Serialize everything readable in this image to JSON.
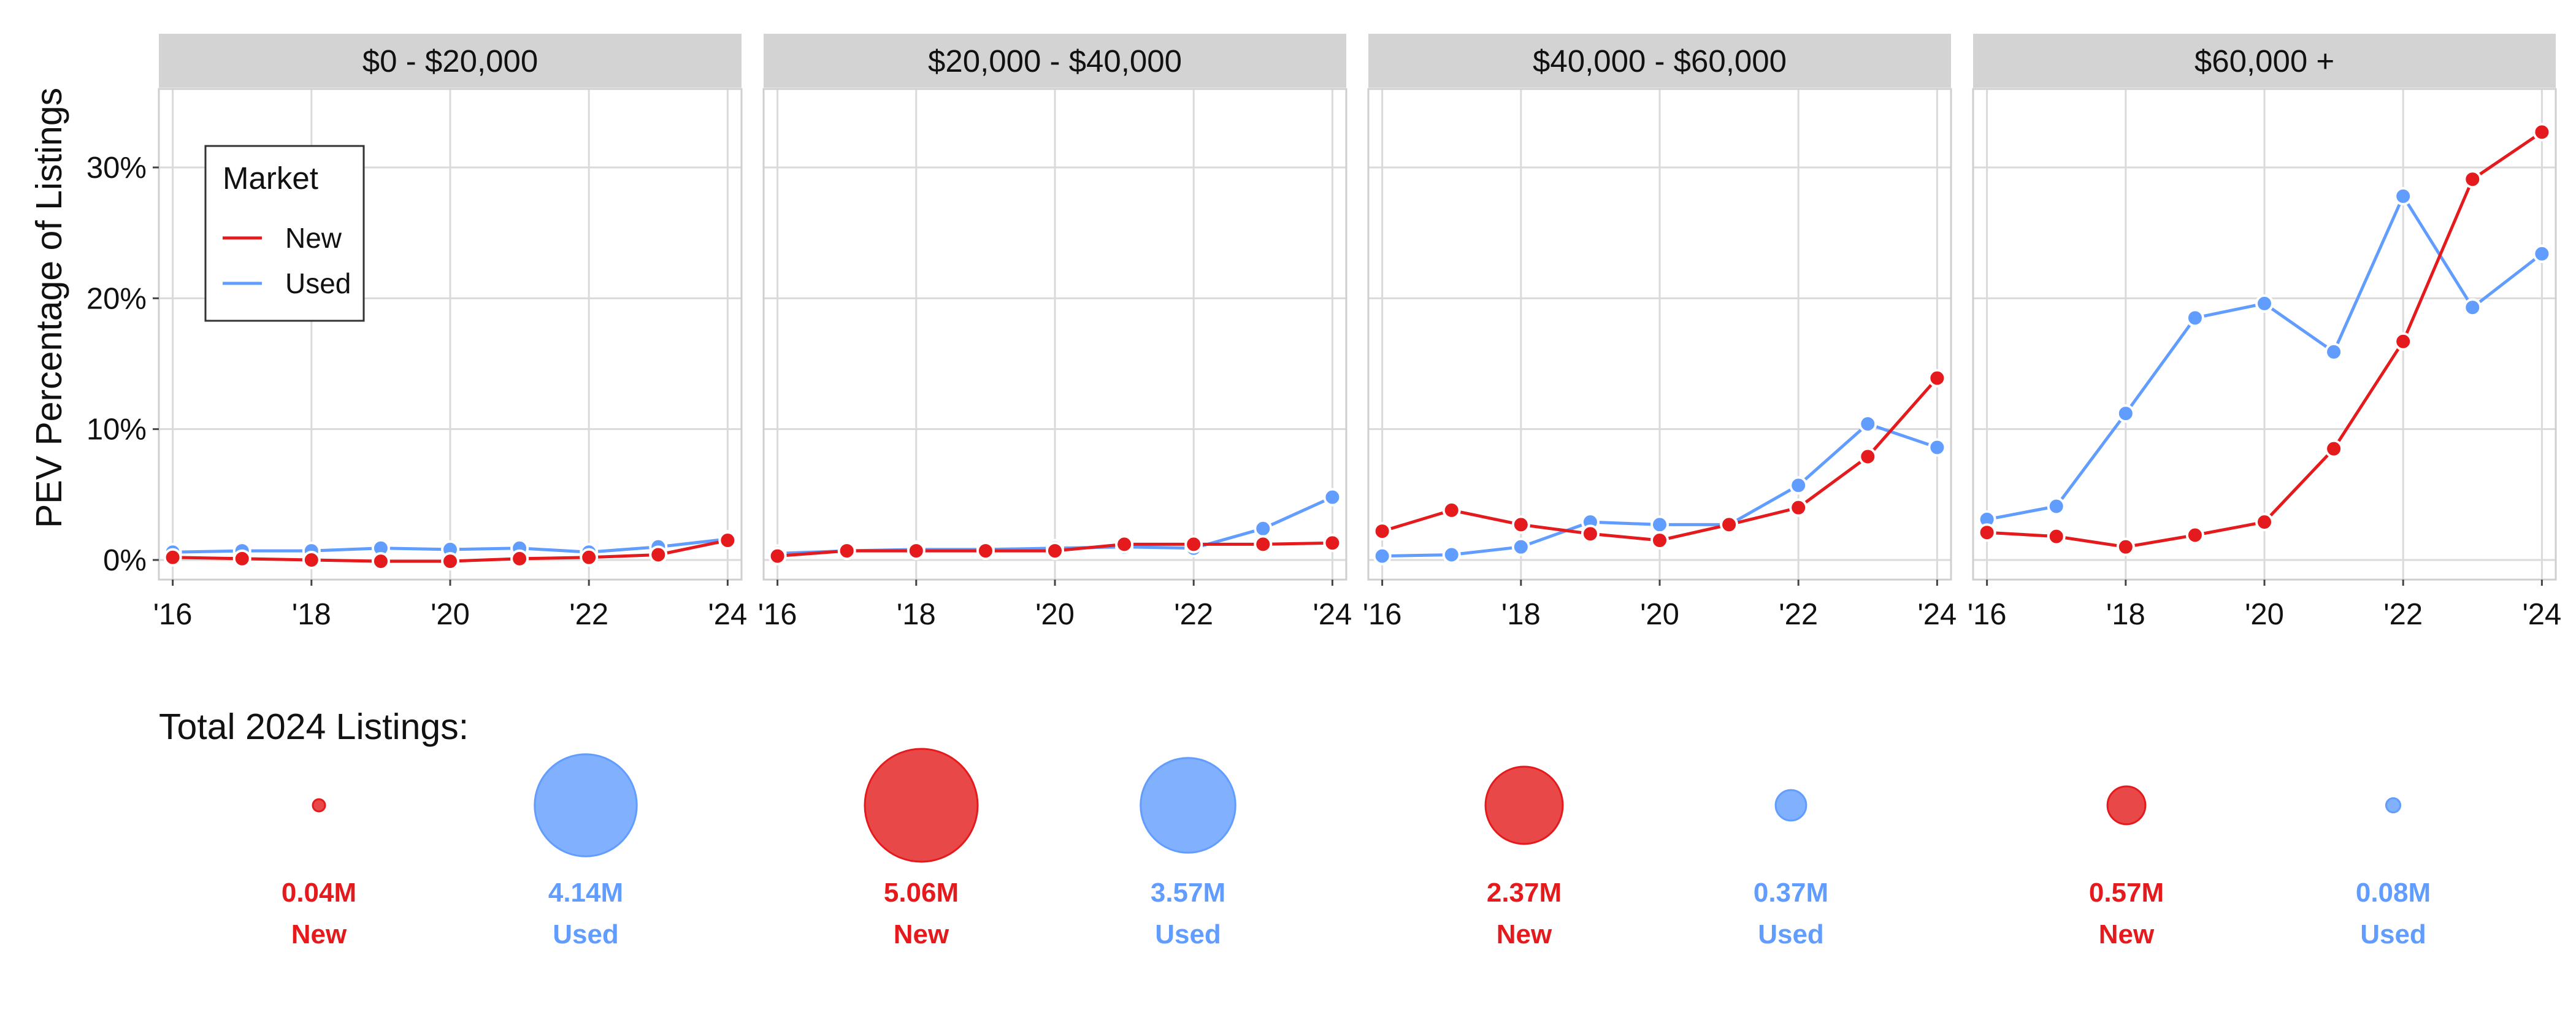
{
  "colors": {
    "New": "#E41A1C",
    "Used": "#619CFF"
  },
  "chart_data": {
    "type": "line",
    "ylabel": "PEV Percentage of Listings",
    "ylim": [
      -1.5,
      36
    ],
    "yticks": [
      0,
      10,
      20,
      30
    ],
    "ytick_labels": [
      "0%",
      "10%",
      "20%",
      "30%"
    ],
    "xlim": [
      2015.8,
      2024.2
    ],
    "xticks": [
      2016,
      2018,
      2020,
      2022,
      2024
    ],
    "xtick_labels": [
      "'16",
      "'18",
      "'20",
      "'22",
      "'24"
    ],
    "x": [
      2016,
      2017,
      2018,
      2019,
      2020,
      2021,
      2022,
      2023,
      2024
    ],
    "legend": {
      "title": "Market",
      "entries": [
        "New",
        "Used"
      ],
      "placement": "top-left"
    },
    "panels": [
      {
        "title": "$0 - $20,000",
        "series": [
          {
            "name": "New",
            "values": [
              0.2,
              0.1,
              0.0,
              -0.1,
              -0.1,
              0.1,
              0.2,
              0.4,
              1.5
            ]
          },
          {
            "name": "Used",
            "values": [
              0.6,
              0.7,
              0.7,
              0.9,
              0.8,
              0.9,
              0.6,
              1.0,
              1.6
            ]
          }
        ]
      },
      {
        "title": "$20,000 - $40,000",
        "series": [
          {
            "name": "New",
            "values": [
              0.3,
              0.7,
              0.7,
              0.7,
              0.7,
              1.2,
              1.2,
              1.2,
              1.3
            ]
          },
          {
            "name": "Used",
            "values": [
              0.5,
              0.7,
              0.8,
              0.8,
              0.9,
              1.0,
              0.9,
              2.4,
              4.8
            ]
          }
        ]
      },
      {
        "title": "$40,000 - $60,000",
        "series": [
          {
            "name": "New",
            "values": [
              2.2,
              3.8,
              2.7,
              2.0,
              1.5,
              2.7,
              4.0,
              7.9,
              13.9
            ]
          },
          {
            "name": "Used",
            "values": [
              0.3,
              0.4,
              1.0,
              2.9,
              2.7,
              2.7,
              5.7,
              10.4,
              8.6
            ]
          }
        ]
      },
      {
        "title": "$60,000 +",
        "series": [
          {
            "name": "New",
            "values": [
              2.1,
              1.8,
              1.0,
              1.9,
              2.9,
              8.5,
              16.7,
              29.1,
              32.7
            ]
          },
          {
            "name": "Used",
            "values": [
              3.1,
              4.1,
              11.2,
              18.5,
              19.6,
              15.9,
              27.8,
              19.3,
              23.4
            ]
          }
        ]
      }
    ],
    "totals": {
      "title": "Total 2024 Listings:",
      "items": [
        {
          "market": "New",
          "value": 0.04,
          "label": "0.04M"
        },
        {
          "market": "Used",
          "value": 4.14,
          "label": "4.14M"
        },
        {
          "market": "New",
          "value": 5.06,
          "label": "5.06M"
        },
        {
          "market": "Used",
          "value": 3.57,
          "label": "3.57M"
        },
        {
          "market": "New",
          "value": 2.37,
          "label": "2.37M"
        },
        {
          "market": "Used",
          "value": 0.37,
          "label": "0.37M"
        },
        {
          "market": "New",
          "value": 0.57,
          "label": "0.57M"
        },
        {
          "market": "Used",
          "value": 0.08,
          "label": "0.08M"
        }
      ]
    }
  }
}
